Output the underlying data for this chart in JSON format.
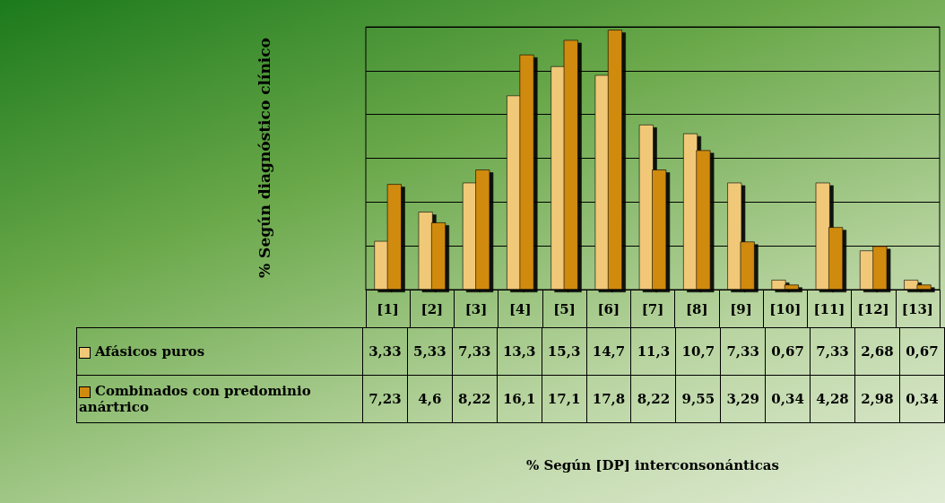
{
  "chart_data": {
    "type": "bar",
    "annotations": [
      "% Según diagnóstico clínico",
      "% Según [DP] interconsonánticas"
    ],
    "categories": [
      "[1]",
      "[2]",
      "[3]",
      "[4]",
      "[5]",
      "[6]",
      "[7]",
      "[8]",
      "[9]",
      "[10]",
      "[11]",
      "[12]",
      "[13]"
    ],
    "series": [
      {
        "name": "Afásicos puros",
        "color": "#f0c878",
        "values": [
          3.33,
          5.33,
          7.33,
          13.3,
          15.3,
          14.7,
          11.3,
          10.7,
          7.33,
          0.67,
          7.33,
          2.68,
          0.67
        ],
        "value_labels": [
          "3,33",
          "5,33",
          "7,33",
          "13,3",
          "15,3",
          "14,7",
          "11,3",
          "10,7",
          "7,33",
          "0,67",
          "7,33",
          "2,68",
          "0,67"
        ]
      },
      {
        "name": "Combinados con predominio anártrico",
        "color": "#d08a10",
        "values": [
          7.23,
          4.6,
          8.22,
          16.1,
          17.1,
          17.8,
          8.22,
          9.55,
          3.29,
          0.34,
          4.28,
          2.98,
          0.34
        ],
        "value_labels": [
          "7,23",
          "4,6",
          "8,22",
          "16,1",
          "17,1",
          "17,8",
          "8,22",
          "9,55",
          "3,29",
          "0,34",
          "4,28",
          "2,98",
          "0,34"
        ]
      }
    ],
    "tick_labels": "x",
    "grid": "y",
    "legend": "bottom left"
  }
}
